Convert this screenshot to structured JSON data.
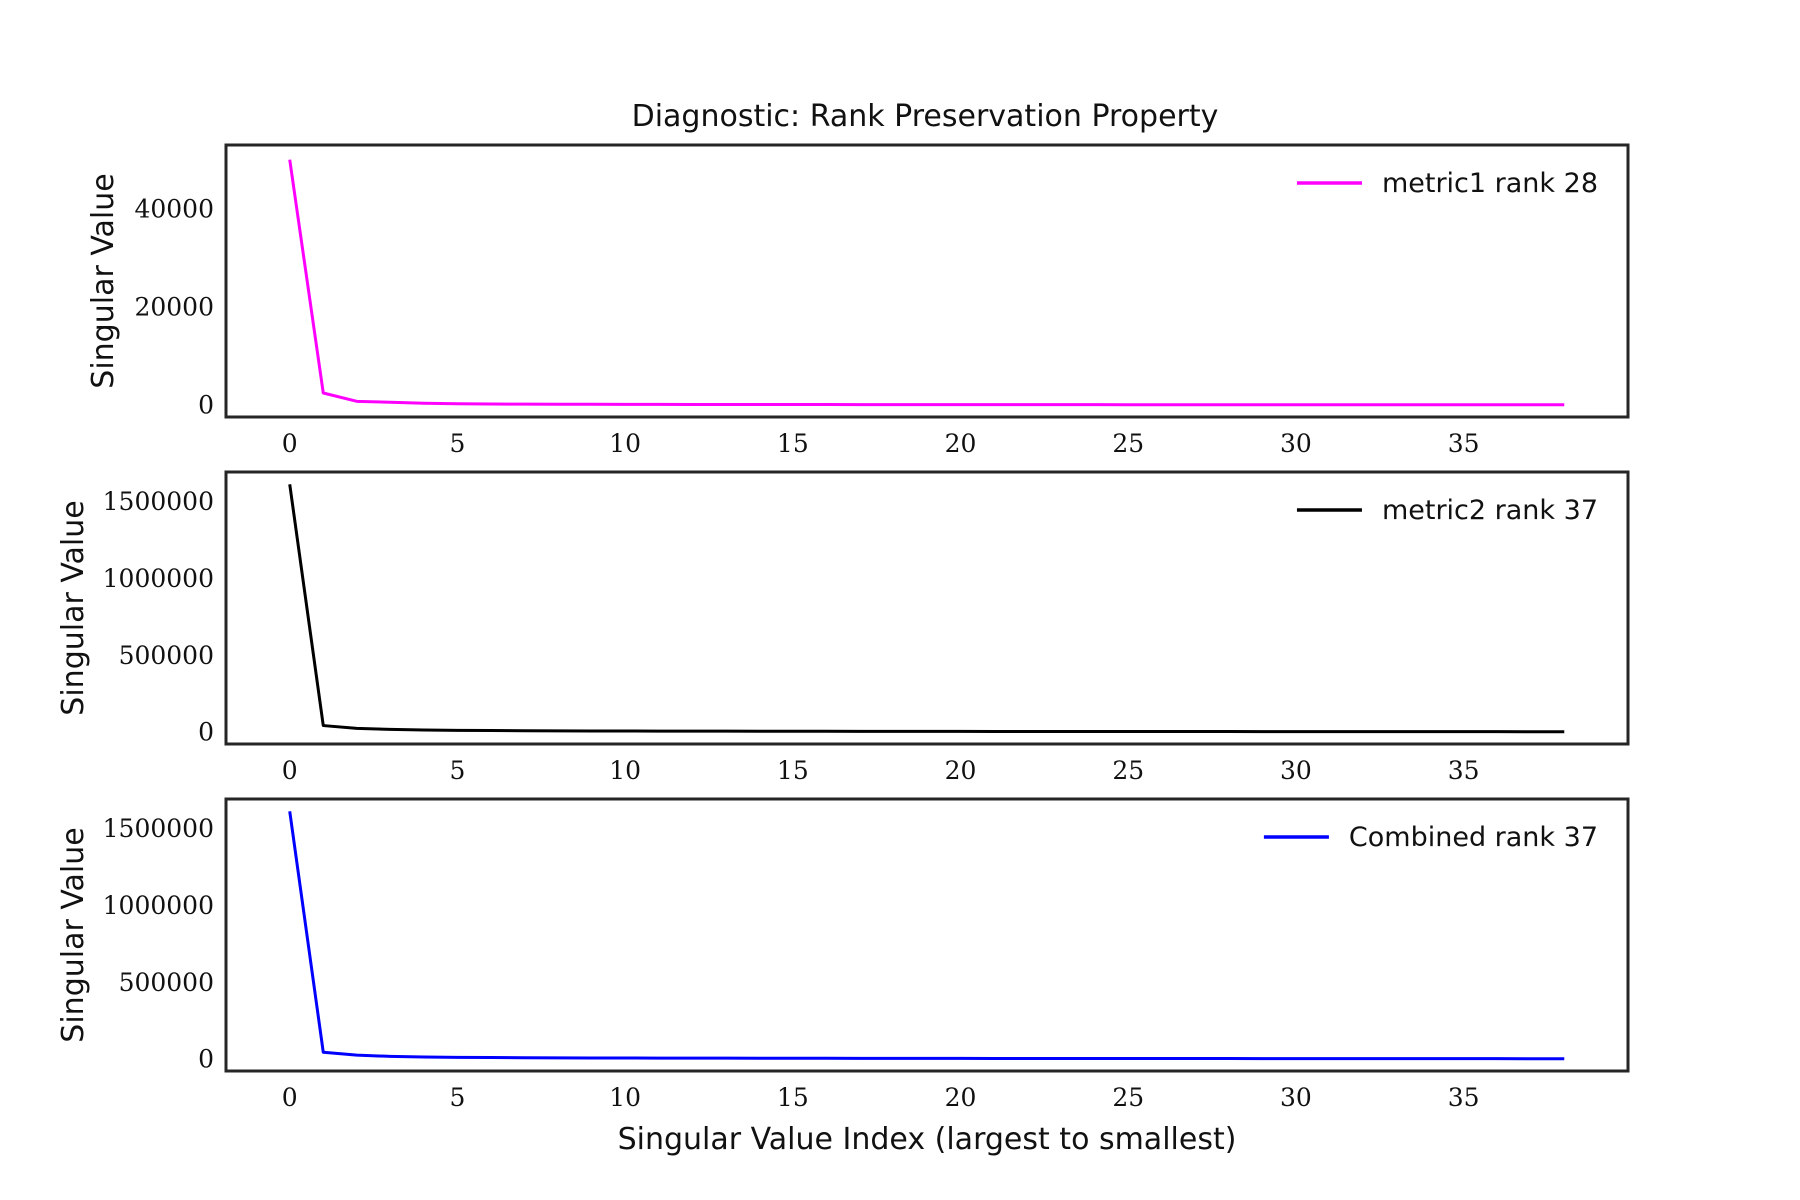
{
  "chart_data": {
    "title": "Diagnostic: Rank Preservation Property",
    "panels": [
      {
        "type": "line",
        "ylabel": "Singular Value",
        "xlabel": "Singular Value Index (largest to smallest)",
        "xlim": [
          -1.9,
          39.9
        ],
        "ylim": [
          -2500,
          53000
        ],
        "xticks": [
          0,
          5,
          10,
          15,
          20,
          25,
          30,
          35
        ],
        "yticks": [
          0,
          20000,
          40000
        ],
        "legend_position": "upper right",
        "series": [
          {
            "name": "metric1 rank 28",
            "color": "#ff00ff",
            "x": [
              0,
              1,
              2,
              3,
              4,
              5,
              6,
              7,
              8,
              9,
              10,
              11,
              12,
              13,
              14,
              15,
              16,
              17,
              18,
              19,
              20,
              21,
              22,
              23,
              24,
              25,
              26,
              27,
              28,
              29,
              30,
              31,
              32,
              33,
              34,
              35,
              36,
              37,
              38
            ],
            "y": [
              50000,
              2400,
              700,
              500,
              300,
              200,
              150,
              120,
              100,
              90,
              80,
              70,
              60,
              55,
              50,
              45,
              40,
              35,
              30,
              27,
              24,
              21,
              18,
              16,
              14,
              12,
              10,
              8,
              6,
              5,
              4,
              3,
              2,
              1,
              1,
              1,
              0,
              0,
              0
            ]
          }
        ]
      },
      {
        "type": "line",
        "ylabel": "Singular Value",
        "xlabel": "Singular Value Index (largest to smallest)",
        "xlim": [
          -1.9,
          39.9
        ],
        "ylim": [
          -80000,
          1690000
        ],
        "xticks": [
          0,
          5,
          10,
          15,
          20,
          25,
          30,
          35
        ],
        "yticks": [
          0,
          500000,
          1000000,
          1500000
        ],
        "legend_position": "upper right",
        "series": [
          {
            "name": "metric2 rank 37",
            "color": "#000000",
            "x": [
              0,
              1,
              2,
              3,
              4,
              5,
              6,
              7,
              8,
              9,
              10,
              11,
              12,
              13,
              14,
              15,
              16,
              17,
              18,
              19,
              20,
              21,
              22,
              23,
              24,
              25,
              26,
              27,
              28,
              29,
              30,
              31,
              32,
              33,
              34,
              35,
              36,
              37,
              38
            ],
            "y": [
              1610000,
              40000,
              22000,
              15000,
              11000,
              9000,
              7500,
              6500,
              5500,
              5000,
              4500,
              4000,
              3700,
              3400,
              3100,
              2800,
              2600,
              2400,
              2200,
              2000,
              1800,
              1700,
              1600,
              1500,
              1400,
              1300,
              1200,
              1100,
              1000,
              900,
              800,
              700,
              600,
              500,
              400,
              300,
              200,
              100,
              50
            ]
          }
        ]
      },
      {
        "type": "line",
        "ylabel": "Singular Value",
        "xlabel": "Singular Value Index (largest to smallest)",
        "xlim": [
          -1.9,
          39.9
        ],
        "ylim": [
          -80000,
          1690000
        ],
        "xticks": [
          0,
          5,
          10,
          15,
          20,
          25,
          30,
          35
        ],
        "yticks": [
          0,
          500000,
          1000000,
          1500000
        ],
        "legend_position": "upper right",
        "series": [
          {
            "name": "Combined rank 37",
            "color": "#0000ff",
            "x": [
              0,
              1,
              2,
              3,
              4,
              5,
              6,
              7,
              8,
              9,
              10,
              11,
              12,
              13,
              14,
              15,
              16,
              17,
              18,
              19,
              20,
              21,
              22,
              23,
              24,
              25,
              26,
              27,
              28,
              29,
              30,
              31,
              32,
              33,
              34,
              35,
              36,
              37,
              38
            ],
            "y": [
              1610000,
              42000,
              23000,
              15000,
              11000,
              9000,
              7500,
              6500,
              5500,
              5000,
              4500,
              4000,
              3700,
              3400,
              3100,
              2800,
              2600,
              2400,
              2200,
              2000,
              1800,
              1700,
              1600,
              1500,
              1400,
              1300,
              1200,
              1100,
              1000,
              900,
              800,
              700,
              600,
              500,
              400,
              300,
              200,
              100,
              50
            ]
          }
        ]
      }
    ]
  }
}
